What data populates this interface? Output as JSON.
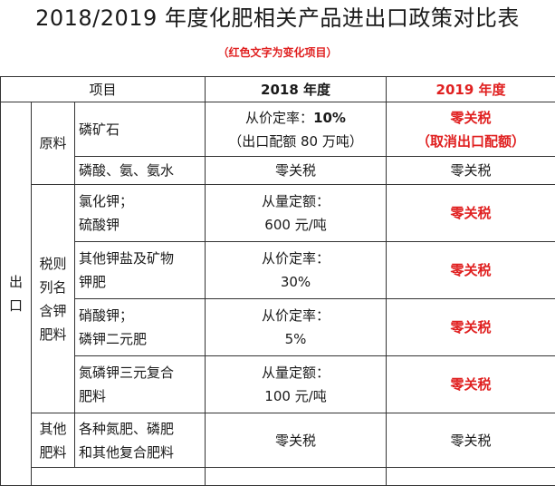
{
  "title": "2018/2019 年度化肥相关产品进出口政策对比表",
  "subtitle": "（红色文字为变化项目）",
  "header": {
    "item": "项目",
    "y2018": "2018 年度",
    "y2019": "2019 年度"
  },
  "category_export": [
    "出",
    "口"
  ],
  "raw_materials": {
    "label": "原料",
    "rows": [
      {
        "product": "磷矿石",
        "y2018_line1_prefix": "从价定率：",
        "y2018_line1_value": "10%",
        "y2018_line2": "（出口配额 80 万吨）",
        "y2019_line1": "零关税",
        "y2019_line2": "（取消出口配额）"
      },
      {
        "product": "磷酸、氨、氨水",
        "y2018": "零关税",
        "y2019": "零关税"
      }
    ]
  },
  "tax_listed": {
    "label": [
      "税则",
      "列名",
      "含钾",
      "肥料"
    ],
    "rows": [
      {
        "product": [
          "氯化钾；",
          "硫酸钾"
        ],
        "y2018": [
          "从量定额：",
          "600 元/吨"
        ],
        "y2019": "零关税"
      },
      {
        "product": [
          "其他钾盐及矿物",
          "钾肥"
        ],
        "y2018": [
          "从价定率：",
          "30%"
        ],
        "y2019": "零关税"
      },
      {
        "product": [
          "硝酸钾；",
          "磷钾二元肥"
        ],
        "y2018": [
          "从价定率：",
          "5%"
        ],
        "y2019": "零关税"
      },
      {
        "product": [
          "氮磷钾三元复合",
          "肥料"
        ],
        "y2018": [
          "从量定额：",
          "100 元/吨"
        ],
        "y2019": "零关税"
      }
    ]
  },
  "other_fertilizers": {
    "label": [
      "其他",
      "肥料"
    ],
    "product": [
      "各种氮肥、磷肥",
      "和其他复合肥料"
    ],
    "y2018": "零关税",
    "y2019": "零关税"
  }
}
